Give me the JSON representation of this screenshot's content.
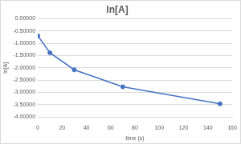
{
  "chart_data": {
    "type": "line",
    "title": "ln[A]",
    "x_label": "time (s)",
    "y_label": "ln[A]",
    "x": [
      0,
      10,
      30,
      70,
      150
    ],
    "values": [
      -0.693,
      -1.386,
      -2.079,
      -2.773,
      -3.466
    ],
    "color": "#4472c4",
    "marker": "circle",
    "grid": true,
    "xlim": [
      0,
      160
    ],
    "xticks": [
      0,
      20,
      40,
      60,
      80,
      100,
      120,
      140,
      160
    ],
    "ylim": [
      -4,
      0
    ],
    "yticks": [
      {
        "value": -4,
        "label": "-4.00000"
      },
      {
        "value": -3.5,
        "label": "-3.50000"
      },
      {
        "value": -3,
        "label": "-3.00000"
      },
      {
        "value": -2.5,
        "label": "-2.50000"
      },
      {
        "value": -2,
        "label": "-2.00000"
      },
      {
        "value": -1.5,
        "label": "-1.50000"
      },
      {
        "value": -1,
        "label": "-1.00000"
      },
      {
        "value": -0.5,
        "label": "-0.50000"
      },
      {
        "value": 0,
        "label": "0.00000"
      }
    ]
  }
}
